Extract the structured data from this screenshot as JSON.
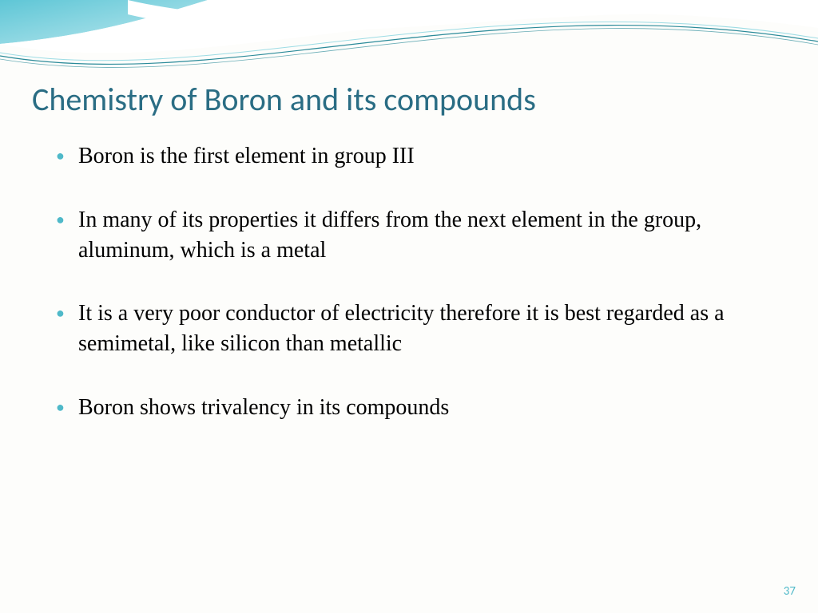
{
  "theme": {
    "title_color": "#2a6d84",
    "bullet_color": "#4fb9c9",
    "text_color": "#000000",
    "page_num_color": "#4fb9c9",
    "wave_fill": "#7fd3e0",
    "wave_fill_light": "#cdeef3",
    "wave_stroke": "#2a8a99",
    "title_fontsize": 40,
    "body_fontsize": 28
  },
  "slide": {
    "title": "Chemistry of Boron and its compounds",
    "bullets": [
      "Boron is the first element in group III",
      "In many of its properties it differs from the next element in the group, aluminum, which is a metal",
      "It is a very poor conductor of electricity therefore it is best regarded as a semimetal, like silicon than metallic",
      "Boron shows trivalency in its compounds"
    ],
    "page_number": "37"
  }
}
